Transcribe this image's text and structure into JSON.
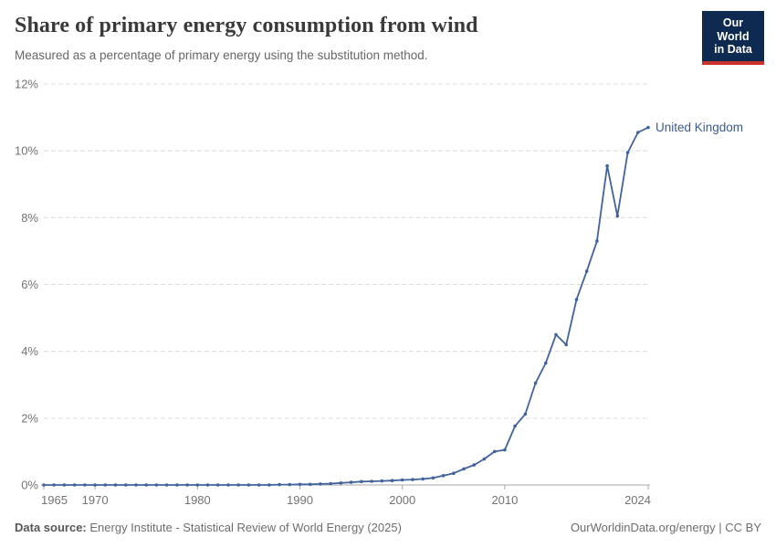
{
  "header": {
    "title": "Share of primary energy consumption from wind",
    "subtitle": "Measured as a percentage of primary energy using the substitution method.",
    "logo": {
      "line1": "Our World",
      "line2": "in Data",
      "bg_color": "#0f2a50",
      "text_color": "#ffffff",
      "accent_color": "#c9342e"
    }
  },
  "chart_data": {
    "type": "line",
    "title": "Share of primary energy consumption from wind",
    "subtitle": "Measured as a percentage of primary energy using the substitution method.",
    "xlabel": "",
    "ylabel": "",
    "ylim": [
      0,
      12
    ],
    "ytick_values": [
      0,
      2,
      4,
      6,
      8,
      10,
      12
    ],
    "ytick_labels": [
      "0%",
      "2%",
      "4%",
      "6%",
      "8%",
      "10%",
      "12%"
    ],
    "xtick_values": [
      1965,
      1970,
      1980,
      1990,
      2000,
      2010,
      2024
    ],
    "xtick_labels": [
      "1965",
      "1970",
      "1980",
      "1990",
      "2000",
      "2010",
      "2024"
    ],
    "x_range": [
      1965,
      2024
    ],
    "grid": "horizontal-dashed",
    "legend_position": "end-of-line-label",
    "series": [
      {
        "name": "United Kingdom",
        "color": "#41639c",
        "label_color": "#3d5c94",
        "years": [
          1965,
          1966,
          1967,
          1968,
          1969,
          1970,
          1971,
          1972,
          1973,
          1974,
          1975,
          1976,
          1977,
          1978,
          1979,
          1980,
          1981,
          1982,
          1983,
          1984,
          1985,
          1986,
          1987,
          1988,
          1989,
          1990,
          1991,
          1992,
          1993,
          1994,
          1995,
          1996,
          1997,
          1998,
          1999,
          2000,
          2001,
          2002,
          2003,
          2004,
          2005,
          2006,
          2007,
          2008,
          2009,
          2010,
          2011,
          2012,
          2013,
          2014,
          2015,
          2016,
          2017,
          2018,
          2019,
          2020,
          2021,
          2022,
          2023,
          2024
        ],
        "values": [
          0,
          0,
          0,
          0,
          0,
          0,
          0,
          0,
          0,
          0,
          0,
          0,
          0,
          0,
          0,
          0,
          0,
          0,
          0,
          0,
          0,
          0,
          0,
          0.01,
          0.01,
          0.02,
          0.02,
          0.03,
          0.04,
          0.06,
          0.08,
          0.1,
          0.11,
          0.12,
          0.13,
          0.15,
          0.16,
          0.18,
          0.21,
          0.28,
          0.35,
          0.48,
          0.6,
          0.78,
          1.0,
          1.05,
          1.76,
          2.12,
          3.05,
          3.65,
          4.5,
          4.2,
          5.55,
          6.4,
          7.3,
          9.55,
          8.05,
          9.95,
          10.55,
          10.7
        ]
      }
    ],
    "axis_color": "#a7a7a7",
    "gridline_color": "#dcdcdc",
    "tick_label_color": "#737373"
  },
  "footer": {
    "source_label": "Data source:",
    "source_text": "Energy Institute - Statistical Review of World Energy (2025)",
    "rights": "OurWorldinData.org/energy | CC BY"
  }
}
